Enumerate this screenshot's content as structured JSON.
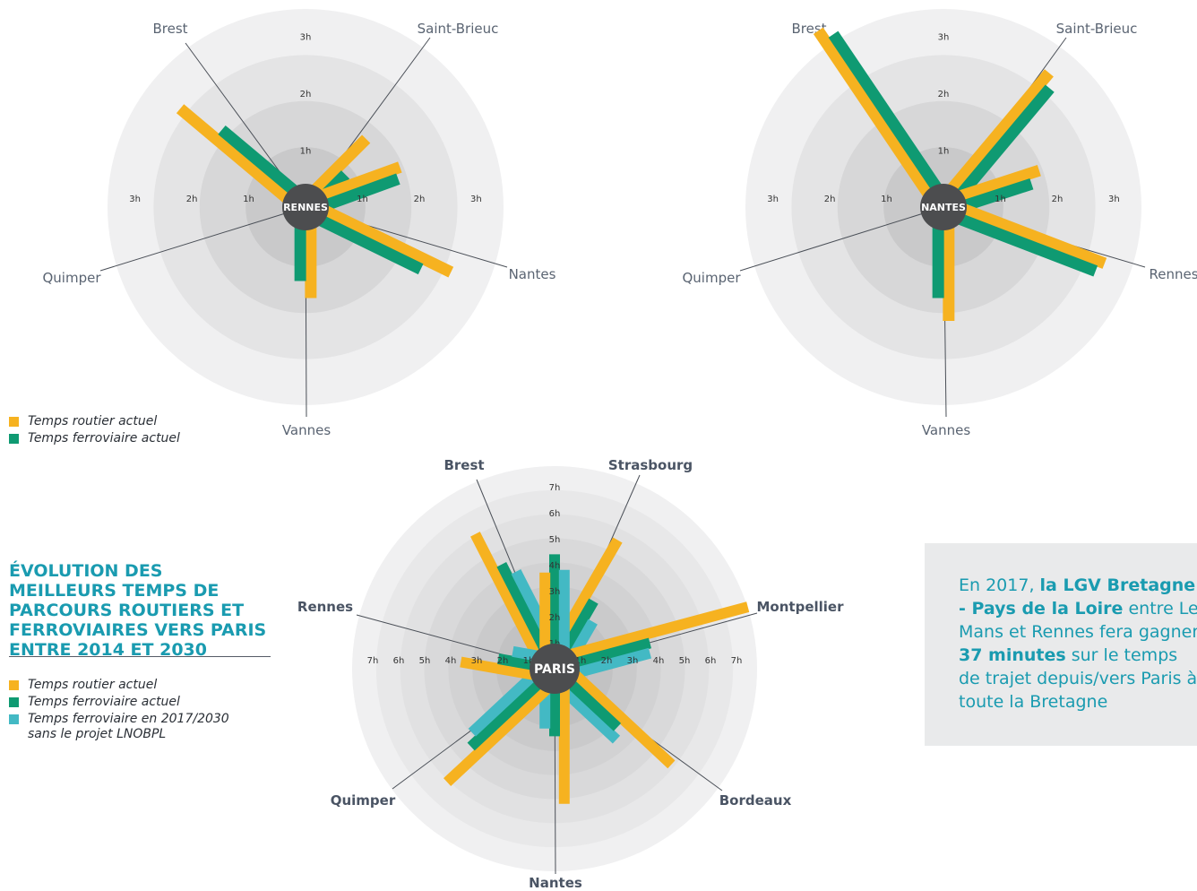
{
  "colors": {
    "road": "#f6b220",
    "rail": "#0f9a72",
    "rail_2030": "#43b9c4",
    "hub": "#4c4d4f",
    "title": "#1a9bb0"
  },
  "legend_small": {
    "road": "Temps routier actuel",
    "rail": "Temps ferroviaire actuel"
  },
  "legend_main": {
    "road": "Temps routier actuel",
    "rail": "Temps ferroviaire actuel",
    "rail_2030_line1": "Temps ferroviaire en 2017/2030",
    "rail_2030_line2": "sans le projet LNOBPL"
  },
  "title": {
    "line1": "ÉVOLUTION DES",
    "line2": "MEILLEURS TEMPS DE",
    "line3": "PARCOURS ROUTIERS ET",
    "line4": "FERROVIAIRES VERS PARIS",
    "line5": "ENTRE 2014 ET 2030"
  },
  "callout": {
    "t1": "En 2017, ",
    "b1": "la LGV Bretagne - Pays de la Loire",
    "t2": " entre Le Mans et Rennes fera gagner ",
    "b2": "37 minutes",
    "t3": " sur le temps de trajet depuis/vers Paris à toute la Bretagne"
  },
  "chart_data": [
    {
      "type": "radial-bar",
      "center": "RENNES",
      "tick_labels": [
        "1h",
        "2h",
        "3h"
      ],
      "rmax_hours": 3.4,
      "series": [
        {
          "name": "Temps routier actuel",
          "values": [
            2.8,
            1.6,
            1.8,
            1.6,
            2.8
          ]
        },
        {
          "name": "Temps ferroviaire actuel",
          "values": [
            2.0,
            0.9,
            1.7,
            1.3,
            2.3
          ]
        }
      ],
      "categories": [
        "Brest",
        "Saint-Brieuc",
        "Nantes",
        "Vannes",
        "Quimper"
      ]
    },
    {
      "type": "radial-bar",
      "center": "NANTES",
      "tick_labels": [
        "1h",
        "2h",
        "3h"
      ],
      "rmax_hours": 3.4,
      "series": [
        {
          "name": "Temps routier actuel",
          "values": [
            3.8,
            3.0,
            1.8,
            2.0,
            3.0
          ]
        },
        {
          "name": "Temps ferroviaire actuel",
          "values": [
            3.6,
            2.8,
            1.6,
            1.6,
            2.9
          ]
        }
      ],
      "categories": [
        "Brest",
        "Saint-Brieuc",
        "Rennes",
        "Vannes",
        "Quimper"
      ]
    },
    {
      "type": "radial-bar",
      "center": "PARIS",
      "tick_labels": [
        "1h",
        "2h",
        "3h",
        "4h",
        "5h",
        "6h",
        "7h"
      ],
      "rmax_hours": 7.6,
      "series": [
        {
          "name": "Temps routier actuel",
          "values": [
            6.0,
            5.5,
            7.8,
            5.8,
            5.2,
            6.0,
            3.6,
            3.7
          ]
        },
        {
          "name": "Temps ferroviaire actuel",
          "values": [
            4.5,
            3.0,
            3.8,
            3.3,
            2.6,
            4.4,
            2.2,
            4.4
          ]
        },
        {
          "name": "Temps ferroviaire en 2017/2030 sans le projet LNOBPL",
          "values": [
            4.0,
            2.3,
            3.7,
            3.6,
            2.3,
            4.0,
            1.7,
            3.8
          ]
        }
      ],
      "categories": [
        "Brest",
        "Strasbourg",
        "Montpellier",
        "Bordeaux",
        "Nantes",
        "Quimper",
        "Rennes",
        "Nantes"
      ]
    }
  ]
}
